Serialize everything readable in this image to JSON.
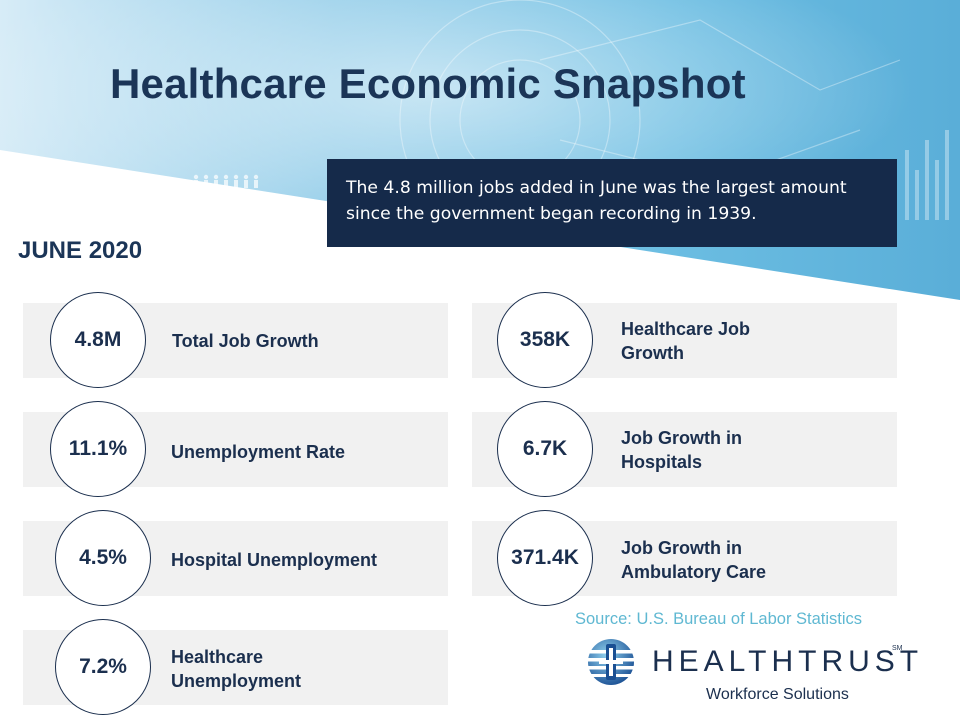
{
  "header": {
    "title": "Healthcare Economic Snapshot",
    "callout": "The 4.8 million jobs added in June was the largest amount since the government began recording in 1939."
  },
  "period": "JUNE 2020",
  "stats_left": [
    {
      "value": "4.8M",
      "label": "Total Job Growth"
    },
    {
      "value": "11.1%",
      "label": "Unemployment  Rate"
    },
    {
      "value": "4.5%",
      "label": "Hospital Unemployment"
    },
    {
      "value": "7.2%",
      "label": "Healthcare\nUnemployment"
    }
  ],
  "stats_right": [
    {
      "value": "358K",
      "label": "Healthcare Job\nGrowth"
    },
    {
      "value": "6.7K",
      "label": "Job Growth in\nHospitals"
    },
    {
      "value": "371.4K",
      "label": "Job Growth in\nAmbulatory Care"
    }
  ],
  "footer": {
    "source": "Source: U.S. Bureau of Labor Statistics",
    "brand": "HEALTHTRUST",
    "brand_tm": "SM",
    "brand_sub": "Workforce Solutions"
  },
  "colors": {
    "navy": "#1b2f4e",
    "callout_bg": "#152a4a",
    "card_bg": "#f1f1f1",
    "source": "#5fb8d2",
    "hero_blue": "#5bb4dc"
  },
  "icons": [
    "healthtrust-globe-logo",
    "people-icons-decoration"
  ]
}
